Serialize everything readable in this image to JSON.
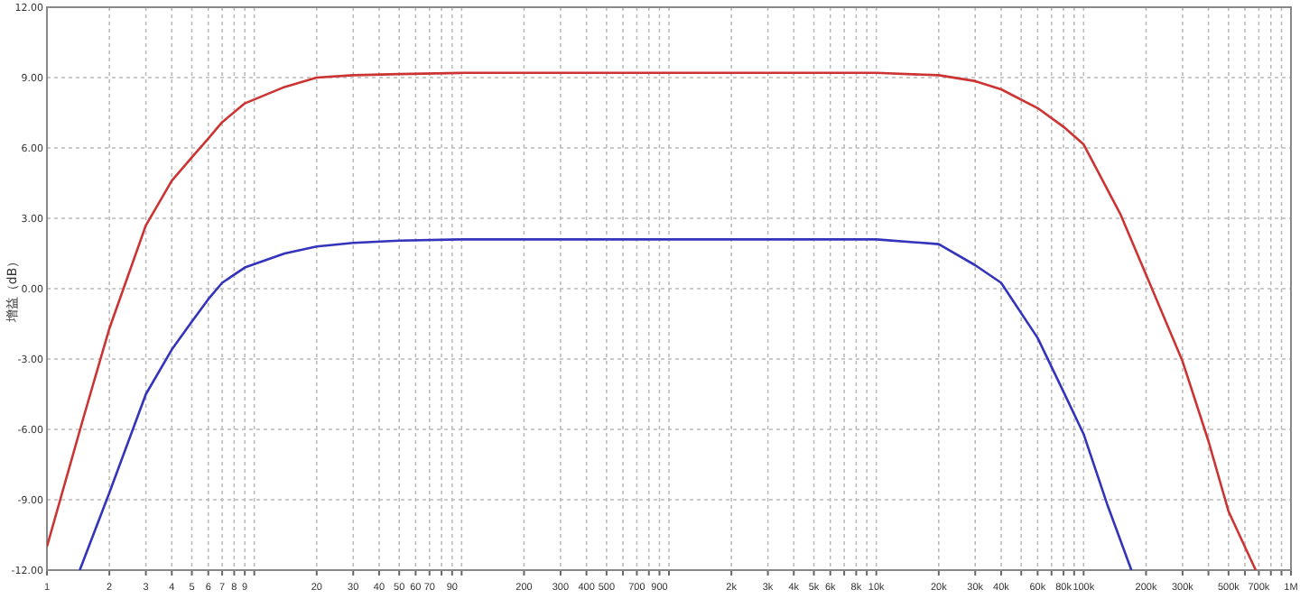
{
  "chart_data": {
    "type": "line",
    "ylabel": "增益（dB）",
    "log": "x",
    "grid": true,
    "xlim": [
      1,
      1000000
    ],
    "ylim": [
      -12,
      12
    ],
    "xticks": [
      1,
      2,
      3,
      4,
      5,
      6,
      7,
      8,
      9,
      {
        "value": 10,
        "label": null
      },
      20,
      30,
      40,
      50,
      60,
      70,
      {
        "value": 80,
        "label": null
      },
      90,
      {
        "value": 100,
        "label": null
      },
      200,
      300,
      400,
      500,
      {
        "value": 600,
        "label": null
      },
      700,
      {
        "value": 800,
        "label": null
      },
      900,
      {
        "value": 1000,
        "label": null
      },
      {
        "value": 2000,
        "label": "2k"
      },
      {
        "value": 3000,
        "label": "3k"
      },
      {
        "value": 4000,
        "label": "4k"
      },
      {
        "value": 5000,
        "label": "5k"
      },
      {
        "value": 6000,
        "label": "6k"
      },
      {
        "value": 7000,
        "label": null
      },
      {
        "value": 8000,
        "label": "8k"
      },
      {
        "value": 9000,
        "label": null
      },
      {
        "value": 10000,
        "label": "10k"
      },
      {
        "value": 20000,
        "label": "20k"
      },
      {
        "value": 30000,
        "label": "30k"
      },
      {
        "value": 40000,
        "label": "40k"
      },
      {
        "value": 50000,
        "label": null
      },
      {
        "value": 60000,
        "label": "60k"
      },
      {
        "value": 70000,
        "label": null
      },
      {
        "value": 80000,
        "label": "80k"
      },
      {
        "value": 90000,
        "label": null
      },
      {
        "value": 100000,
        "label": "100k"
      },
      {
        "value": 200000,
        "label": "200k"
      },
      {
        "value": 300000,
        "label": "300k"
      },
      {
        "value": 400000,
        "label": null
      },
      {
        "value": 500000,
        "label": "500k"
      },
      {
        "value": 600000,
        "label": null
      },
      {
        "value": 700000,
        "label": "700k"
      },
      {
        "value": 800000,
        "label": null
      },
      {
        "value": 900000,
        "label": null
      },
      {
        "value": 1000000,
        "label": "1M"
      }
    ],
    "yticks": [
      {
        "value": 12,
        "label": "12.00"
      },
      {
        "value": 9,
        "label": "9.00"
      },
      {
        "value": 6,
        "label": "6.00"
      },
      {
        "value": 3,
        "label": "3.00"
      },
      {
        "value": 0,
        "label": "0.00"
      },
      {
        "value": -3,
        "label": "-3.00"
      },
      {
        "value": -6,
        "label": "-6.00"
      },
      {
        "value": -9,
        "label": "-9.00"
      },
      {
        "value": -12,
        "label": "-12.00"
      }
    ],
    "series": [
      {
        "color": "#cc3333",
        "x": [
          1,
          1.5,
          2,
          3,
          4,
          5,
          6,
          7,
          9,
          14,
          20,
          30,
          50,
          100,
          1000,
          10000,
          20000,
          30000,
          40000,
          60000,
          80000,
          100000,
          150000,
          200000,
          300000,
          400000,
          500000,
          676000
        ],
        "values": [
          -11,
          -5.5,
          -1.7,
          2.7,
          4.6,
          5.6,
          6.4,
          7.1,
          7.9,
          8.6,
          9.0,
          9.1,
          9.15,
          9.2,
          9.2,
          9.2,
          9.1,
          8.85,
          8.5,
          7.7,
          6.9,
          6.15,
          3.2,
          0.6,
          -3.1,
          -6.5,
          -9.5,
          -12
        ]
      },
      {
        "color": "#3333bb",
        "x": [
          1.44,
          2,
          3,
          4,
          5,
          6,
          7,
          9,
          14,
          20,
          30,
          50,
          100,
          1000,
          10000,
          20000,
          30000,
          40000,
          60000,
          80000,
          100000,
          130000,
          170000
        ],
        "values": [
          -12,
          -8.7,
          -4.5,
          -2.6,
          -1.4,
          -0.45,
          0.25,
          0.9,
          1.5,
          1.8,
          1.95,
          2.05,
          2.1,
          2.1,
          2.1,
          1.9,
          1.0,
          0.25,
          -2.1,
          -4.4,
          -6.2,
          -9.2,
          -12
        ]
      }
    ]
  }
}
